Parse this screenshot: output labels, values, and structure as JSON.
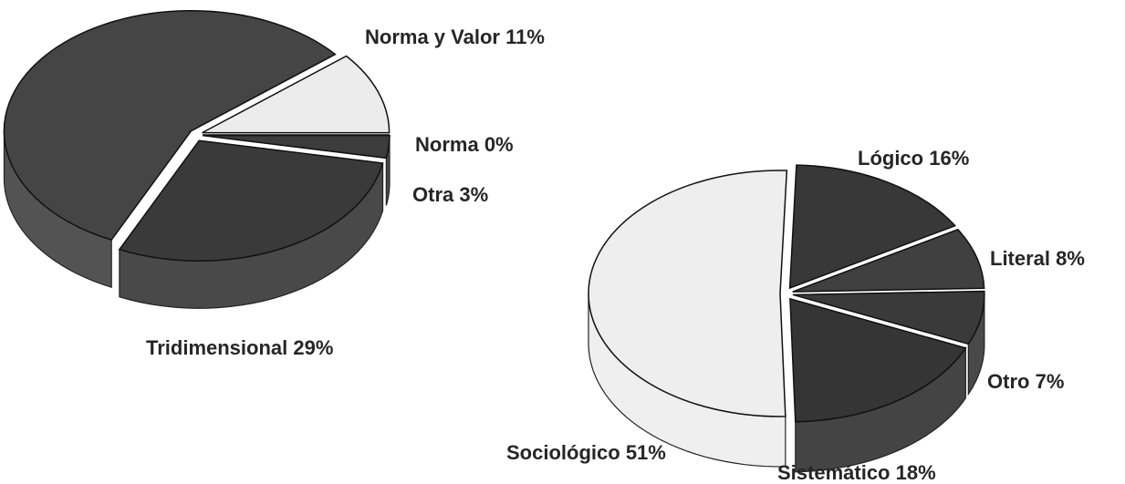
{
  "chart_data": [
    {
      "type": "pie",
      "categories": [
        "Norma y Valor",
        "Norma",
        "Otra",
        "Tridimensional",
        null
      ],
      "values": [
        11,
        0,
        3,
        29,
        57
      ],
      "value_labels": [
        "11%",
        "0%",
        "3%",
        "29%",
        null
      ],
      "colors": [
        "#ececec",
        "#8a8a8a",
        "#3c3c3c",
        "#3a3a3a",
        "#454545"
      ]
    },
    {
      "type": "pie",
      "categories": [
        "Lógico",
        "Literal",
        "Otro",
        "Sistemático",
        "Sociológico"
      ],
      "values": [
        16,
        8,
        7,
        18,
        51
      ],
      "value_labels": [
        "16%",
        "8%",
        "7%",
        "18%",
        "51%"
      ],
      "colors": [
        "#383838",
        "#404040",
        "#3a3a3a",
        "#353535",
        "#eeeeee"
      ]
    }
  ]
}
